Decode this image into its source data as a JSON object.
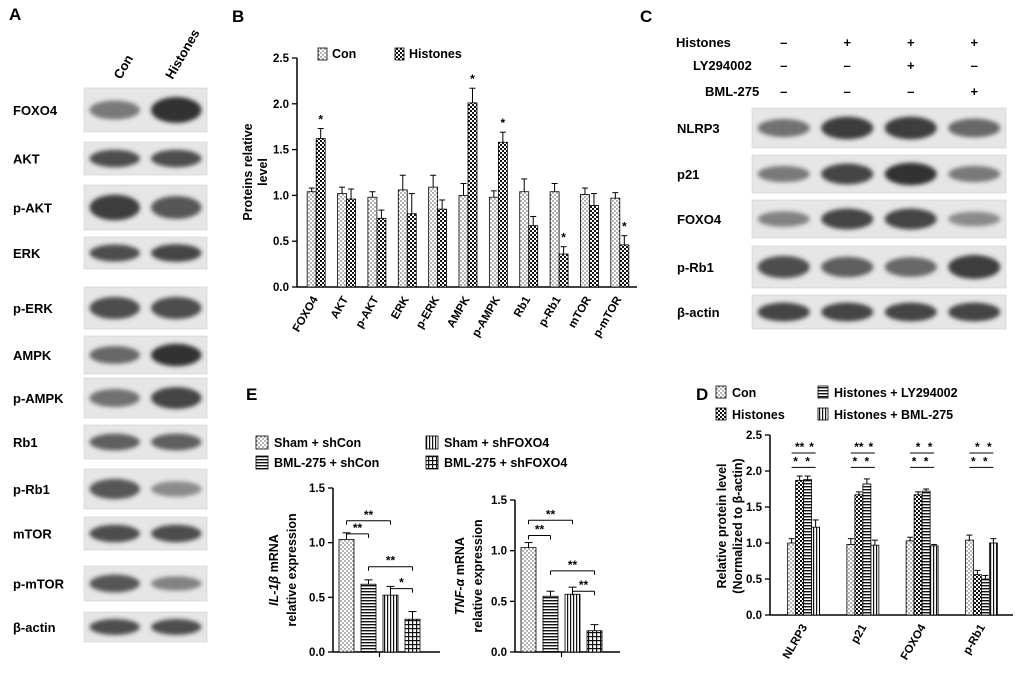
{
  "panel_letters": {
    "A": "A",
    "B": "B",
    "C": "C",
    "D": "D",
    "E": "E"
  },
  "panelA": {
    "columns": [
      "Con",
      "Histones"
    ],
    "rows": [
      "FOXO4",
      "AKT",
      "p-AKT",
      "ERK",
      "p-ERK",
      "AMPK",
      "p-AMPK",
      "Rb1",
      "p-Rb1",
      "mTOR",
      "p-mTOR",
      "β-actin"
    ],
    "band_intensity": [
      [
        0.45,
        0.85
      ],
      [
        0.7,
        0.7
      ],
      [
        0.8,
        0.65
      ],
      [
        0.7,
        0.75
      ],
      [
        0.7,
        0.7
      ],
      [
        0.55,
        0.85
      ],
      [
        0.5,
        0.75
      ],
      [
        0.6,
        0.6
      ],
      [
        0.65,
        0.35
      ],
      [
        0.7,
        0.7
      ],
      [
        0.65,
        0.4
      ],
      [
        0.7,
        0.7
      ]
    ]
  },
  "panelC": {
    "conditions": [
      {
        "label": "Histones",
        "signs": [
          "–",
          "+",
          "+",
          "+"
        ]
      },
      {
        "label": "LY294002",
        "signs": [
          "–",
          "–",
          "+",
          "–"
        ]
      },
      {
        "label": "BML-275",
        "signs": [
          "–",
          "–",
          "–",
          "+"
        ]
      }
    ],
    "rows": [
      "NLRP3",
      "p21",
      "FOXO4",
      "p-Rb1",
      "β-actin"
    ],
    "band_intensity": [
      [
        0.5,
        0.8,
        0.8,
        0.55
      ],
      [
        0.45,
        0.75,
        0.85,
        0.45
      ],
      [
        0.4,
        0.75,
        0.75,
        0.35
      ],
      [
        0.7,
        0.6,
        0.55,
        0.8
      ],
      [
        0.75,
        0.75,
        0.75,
        0.75
      ]
    ]
  },
  "chart_data": [
    {
      "id": "B",
      "type": "bar",
      "ylabel": "Proteins relative level",
      "ylim": [
        0,
        2.5
      ],
      "yticks": [
        "0.0",
        "0.5",
        "1.0",
        "1.5",
        "2.0",
        "2.5"
      ],
      "categories": [
        "FOXO4",
        "AKT",
        "p-AKT",
        "ERK",
        "p-ERK",
        "AMPK",
        "p-AMPK",
        "Rb1",
        "p-Rb1",
        "mTOR",
        "p-mTOR"
      ],
      "series": [
        {
          "name": "Con",
          "values": [
            1.04,
            1.02,
            0.98,
            1.06,
            1.09,
            1.0,
            0.98,
            1.04,
            1.04,
            1.01,
            0.97
          ],
          "errors": [
            0.04,
            0.07,
            0.06,
            0.16,
            0.13,
            0.13,
            0.07,
            0.14,
            0.09,
            0.07,
            0.06
          ]
        },
        {
          "name": "Histones",
          "values": [
            1.62,
            0.96,
            0.75,
            0.8,
            0.85,
            2.01,
            1.58,
            0.67,
            0.36,
            0.89,
            0.46
          ],
          "errors": [
            0.11,
            0.11,
            0.09,
            0.22,
            0.1,
            0.16,
            0.11,
            0.1,
            0.08,
            0.13,
            0.1
          ]
        }
      ],
      "significance": [
        {
          "category": "FOXO4",
          "label": "*"
        },
        {
          "category": "AMPK",
          "label": "*"
        },
        {
          "category": "p-AMPK",
          "label": "*"
        },
        {
          "category": "p-Rb1",
          "label": "*"
        },
        {
          "category": "p-mTOR",
          "label": "*"
        }
      ],
      "legend_placement": "top"
    },
    {
      "id": "D",
      "type": "bar",
      "ylabel": "Relative protein level",
      "ylabel2": "(Normalized to β-actin)",
      "ylim": [
        0,
        2.5
      ],
      "yticks": [
        "0.0",
        "0.5",
        "1.0",
        "1.5",
        "2.0",
        "2.5"
      ],
      "categories": [
        "NLRP3",
        "p21",
        "FOXO4",
        "p-Rb1"
      ],
      "series": [
        {
          "name": "Con",
          "values": [
            1.0,
            0.98,
            1.03,
            1.04
          ],
          "errors": [
            0.06,
            0.08,
            0.05,
            0.07
          ]
        },
        {
          "name": "Histones",
          "values": [
            1.87,
            1.67,
            1.67,
            0.56
          ],
          "errors": [
            0.06,
            0.04,
            0.04,
            0.06
          ]
        },
        {
          "name": "Histones + LY294002",
          "values": [
            1.88,
            1.82,
            1.72,
            0.5
          ],
          "errors": [
            0.05,
            0.07,
            0.03,
            0.05
          ]
        },
        {
          "name": "Histones + BML-275",
          "values": [
            1.22,
            0.97,
            0.96,
            1.0
          ],
          "errors": [
            0.1,
            0.07,
            0.02,
            0.06
          ]
        }
      ],
      "significance": [
        {
          "category": "NLRP3",
          "labels": [
            "**",
            "*",
            "*",
            "*"
          ]
        },
        {
          "category": "p21",
          "labels": [
            "**",
            "*",
            "*",
            "*"
          ]
        },
        {
          "category": "FOXO4",
          "labels": [
            "*",
            "*",
            "*",
            "*"
          ]
        },
        {
          "category": "p-Rb1",
          "labels": [
            "*",
            "*",
            "*",
            "*"
          ]
        }
      ],
      "legend_placement": "top"
    },
    {
      "id": "E1",
      "type": "bar",
      "ylabel_italic": "IL-1β",
      "ylabel_rest": " mRNA",
      "ylabel2": "relative expression",
      "ylim": [
        0,
        1.5
      ],
      "yticks": [
        "0.0",
        "0.5",
        "1.0",
        "1.5"
      ],
      "series": [
        {
          "name": "Sham + shCon",
          "value": 1.03,
          "error": 0.06
        },
        {
          "name": "BML-275 + shCon",
          "value": 0.62,
          "error": 0.04
        },
        {
          "name": "Sham + shFOXO4",
          "value": 0.52,
          "error": 0.08
        },
        {
          "name": "BML-275 + shFOXO4",
          "value": 0.3,
          "error": 0.07
        }
      ],
      "significance": [
        "**",
        "**",
        "**",
        "*"
      ],
      "legend_placement": "top"
    },
    {
      "id": "E2",
      "type": "bar",
      "ylabel_italic": "TNF-α",
      "ylabel_rest": " mRNA",
      "ylabel2": "relative expression",
      "ylim": [
        0,
        1.5
      ],
      "yticks": [
        "0.0",
        "0.5",
        "1.0",
        "1.5"
      ],
      "series": [
        {
          "name": "Sham + shCon",
          "value": 1.03,
          "error": 0.05
        },
        {
          "name": "BML-275 + shCon",
          "value": 0.55,
          "error": 0.05
        },
        {
          "name": "Sham + shFOXO4",
          "value": 0.57,
          "error": 0.07
        },
        {
          "name": "BML-275 + shFOXO4",
          "value": 0.21,
          "error": 0.06
        }
      ],
      "significance": [
        "**",
        "**",
        "**",
        "**"
      ]
    }
  ]
}
